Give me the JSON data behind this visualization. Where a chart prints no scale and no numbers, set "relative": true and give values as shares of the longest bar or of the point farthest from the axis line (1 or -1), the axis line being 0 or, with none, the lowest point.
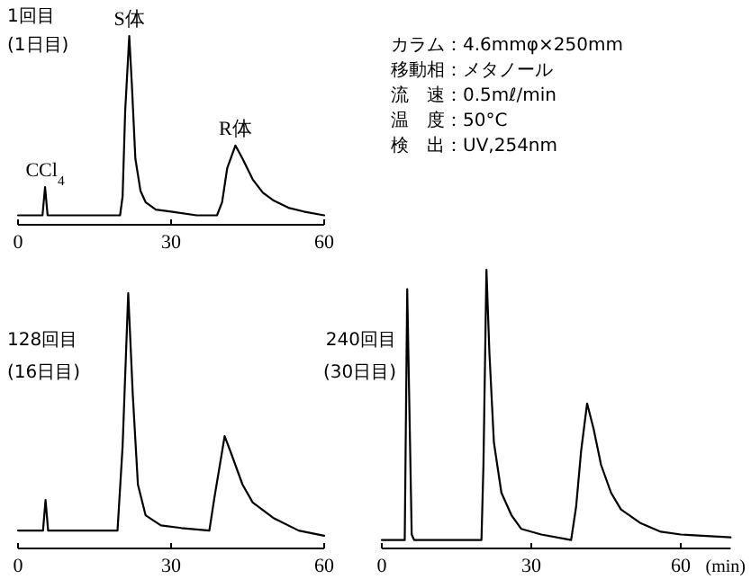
{
  "chart_data": [
    {
      "type": "line",
      "title": "1回目",
      "subtitle": "(1日目)",
      "relative": true,
      "xlim": [
        0,
        60
      ],
      "xticks": [
        0,
        30,
        60
      ],
      "marker": "none",
      "line_style": "solid",
      "x": [
        0,
        4.8,
        5.3,
        5.8,
        6.5,
        20,
        20.5,
        21,
        21.8,
        22.3,
        23,
        24,
        25,
        27,
        30,
        35,
        39,
        40,
        41,
        42.6,
        44,
        46,
        48,
        50,
        53,
        56,
        60
      ],
      "series": [
        {
          "color": "#000000",
          "values": [
            0.05,
            0.05,
            0.2,
            0.05,
            0.05,
            0.05,
            0.15,
            0.6,
            1,
            0.75,
            0.35,
            0.18,
            0.12,
            0.08,
            0.07,
            0.05,
            0.05,
            0.12,
            0.3,
            0.42,
            0.35,
            0.24,
            0.17,
            0.13,
            0.09,
            0.07,
            0.05
          ]
        }
      ],
      "annotations": [
        {
          "text": "CCl$_{4}$",
          "x": 5.3,
          "y": 0.2
        },
        {
          "text": "S体",
          "x": 21.8,
          "y": 1
        },
        {
          "text": "R体",
          "x": 42.6,
          "y": 0.42
        }
      ]
    },
    {
      "type": "other",
      "annotations": [
        "カラム：4.6mmφ×250mm",
        "移動相：メタノール",
        "流　速：0.5mℓ/min",
        "温　度：50°C",
        "検　出：UV,254nm"
      ]
    },
    {
      "type": "line",
      "title": "128回目",
      "subtitle": "(16日目)",
      "relative": true,
      "xlim": [
        0,
        60
      ],
      "xticks": [
        0,
        30,
        60
      ],
      "marker": "none",
      "line_style": "solid",
      "x": [
        0,
        4.9,
        5.4,
        5.9,
        19.5,
        20.5,
        21.6,
        22.5,
        23.5,
        25,
        28,
        32,
        37.5,
        38.5,
        40.5,
        42,
        44,
        46,
        50,
        55,
        60
      ],
      "series": [
        {
          "color": "#000000",
          "values": [
            0.07,
            0.07,
            0.19,
            0.07,
            0.07,
            0.4,
            1,
            0.6,
            0.25,
            0.13,
            0.09,
            0.08,
            0.07,
            0.2,
            0.44,
            0.36,
            0.25,
            0.18,
            0.12,
            0.07,
            0.05
          ]
        }
      ]
    },
    {
      "type": "line",
      "title": "240回目",
      "subtitle": "(30日目)",
      "xlabel": "(min)",
      "relative": true,
      "xlim": [
        0,
        70
      ],
      "xticks": [
        0,
        30,
        60
      ],
      "marker": "none",
      "line_style": "solid",
      "x": [
        0,
        4.6,
        5.1,
        6.0,
        6.5,
        20,
        20.4,
        21,
        21.6,
        22.5,
        24,
        26,
        28,
        32,
        38,
        39,
        40,
        41.2,
        42.5,
        44,
        46,
        48,
        52,
        56,
        60,
        70
      ],
      "series": [
        {
          "color": "#000000",
          "values": [
            0.03,
            0.03,
            0.93,
            0.05,
            0.03,
            0.03,
            0.3,
            1,
            0.7,
            0.38,
            0.2,
            0.12,
            0.07,
            0.05,
            0.03,
            0.15,
            0.35,
            0.52,
            0.43,
            0.3,
            0.2,
            0.14,
            0.09,
            0.06,
            0.05,
            0.04
          ]
        }
      ]
    }
  ]
}
